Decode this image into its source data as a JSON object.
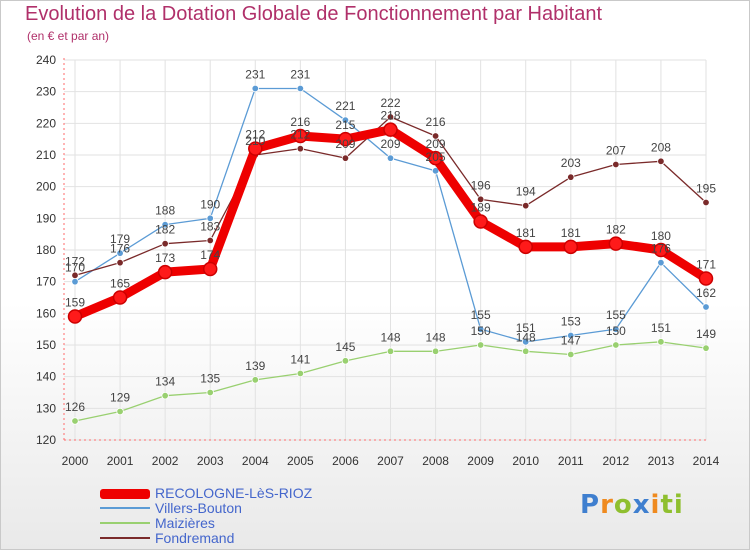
{
  "chart_data": {
    "type": "line",
    "title": "Evolution de la Dotation Globale de Fonctionnement par Habitant",
    "subtitle": "(en € et par an)",
    "xlabel": "",
    "ylabel": "",
    "ylim": [
      120,
      240
    ],
    "yticks": [
      120,
      130,
      140,
      150,
      160,
      170,
      180,
      190,
      200,
      210,
      220,
      230,
      240
    ],
    "categories": [
      "2000",
      "2001",
      "2002",
      "2003",
      "2004",
      "2005",
      "2006",
      "2007",
      "2008",
      "2009",
      "2010",
      "2011",
      "2012",
      "2013",
      "2014"
    ],
    "grid": true,
    "legend_position": "bottom-left",
    "series": [
      {
        "name": "RECOLOGNE-LèS-RIOZ",
        "color": "#ee0000",
        "values": [
          159,
          165,
          173,
          174,
          212,
          216,
          215,
          218,
          209,
          189,
          181,
          181,
          182,
          180,
          171
        ]
      },
      {
        "name": "Villers-Bouton",
        "color": "#5b9bd5",
        "values": [
          170,
          179,
          188,
          190,
          231,
          231,
          221,
          209,
          205,
          155,
          151,
          153,
          155,
          176,
          162
        ]
      },
      {
        "name": "Maizières",
        "color": "#99d070",
        "values": [
          126,
          129,
          134,
          135,
          139,
          141,
          145,
          148,
          148,
          150,
          148,
          147,
          150,
          151,
          149
        ]
      },
      {
        "name": "Fondremand",
        "color": "#7a2a2a",
        "values": [
          172,
          176,
          182,
          183,
          210,
          212,
          209,
          222,
          216,
          196,
          194,
          203,
          207,
          208,
          195
        ]
      }
    ]
  },
  "logo": {
    "text": [
      "P",
      "r",
      "o",
      "x",
      "i",
      "t",
      "i"
    ]
  }
}
